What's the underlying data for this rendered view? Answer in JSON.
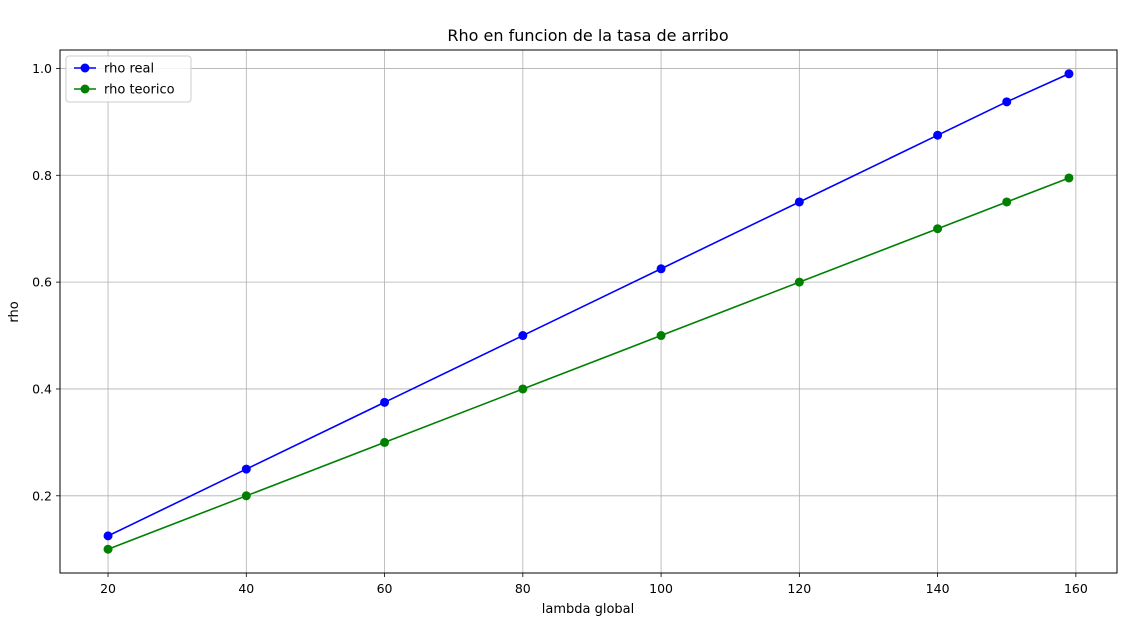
{
  "chart_data": {
    "type": "line",
    "title": "Rho en funcion de la tasa de arribo",
    "xlabel": "lambda global",
    "ylabel": "rho",
    "xlim": [
      13.05,
      165.95
    ],
    "ylim": [
      0.0555,
      1.0345
    ],
    "xticks": [
      20,
      40,
      60,
      80,
      100,
      120,
      140,
      160
    ],
    "yticks": [
      0.2,
      0.4,
      0.6,
      0.8,
      1.0
    ],
    "xtick_labels": [
      "20",
      "40",
      "60",
      "80",
      "100",
      "120",
      "140",
      "160"
    ],
    "ytick_labels": [
      "0.2",
      "0.4",
      "0.6",
      "0.8",
      "1.0"
    ],
    "grid": true,
    "legend_position": "top-left",
    "x": [
      20,
      40,
      60,
      80,
      100,
      120,
      140,
      150,
      159
    ],
    "series": [
      {
        "name": "rho real",
        "color": "#0000ff",
        "marker": "circle",
        "values": [
          0.125,
          0.25,
          0.375,
          0.5,
          0.625,
          0.75,
          0.875,
          0.9375,
          0.99
        ]
      },
      {
        "name": "rho teorico",
        "color": "#008000",
        "marker": "circle",
        "values": [
          0.1,
          0.2,
          0.3,
          0.4,
          0.5,
          0.6,
          0.7,
          0.75,
          0.795
        ]
      }
    ]
  }
}
